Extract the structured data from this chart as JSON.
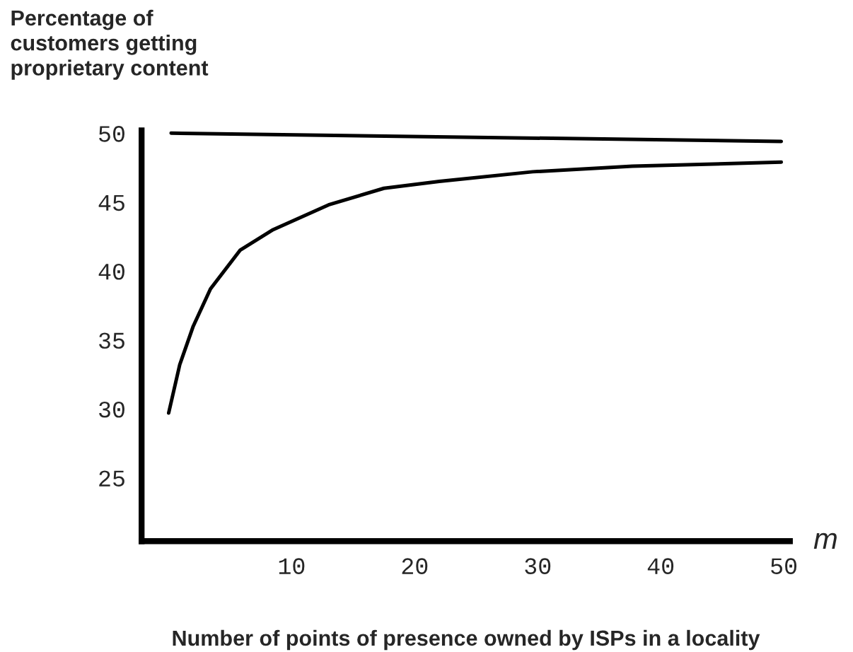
{
  "chart_data": {
    "type": "line",
    "ylabel": "Percentage of\ncustomers getting\nproprietary content",
    "xlabel": "Number of points of presence owned by ISPs in a locality",
    "annotations": [
      "m"
    ],
    "xlim": [
      -2.2,
      50.5
    ],
    "xticks": [
      10,
      20,
      30,
      40,
      50
    ],
    "ylim": [
      20.4,
      50.2
    ],
    "yticks": [
      25,
      30,
      35,
      40,
      45,
      50
    ],
    "grid": false,
    "legend": false,
    "series": [
      {
        "color": "#000000",
        "x": [
          0.2,
          49.8
        ],
        "values": [
          50.0,
          49.4
        ]
      },
      {
        "color": "#000000",
        "x": [
          0,
          0.9,
          2.0,
          3.4,
          5.8,
          8.5,
          13,
          17.5,
          22,
          29.6,
          37.7,
          49.8
        ],
        "values": [
          29.7,
          33.2,
          36.0,
          38.7,
          41.5,
          43.0,
          44.8,
          46.0,
          46.5,
          47.2,
          47.6,
          47.9
        ]
      }
    ]
  }
}
